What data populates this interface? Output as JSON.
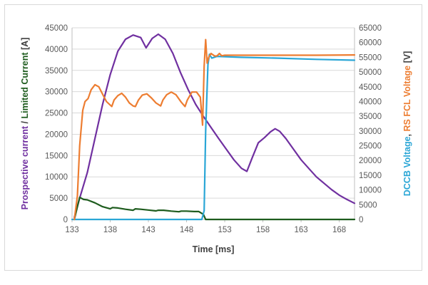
{
  "chart_data": {
    "type": "line",
    "title": "",
    "xlabel": "Time [ms]",
    "ylabel_left_parts": [
      {
        "text": "Prospective current",
        "color": "#7030a0"
      },
      {
        "text": " / ",
        "color": "#404040"
      },
      {
        "text": "Limited Current",
        "color": "#1e5c1e"
      },
      {
        "text": " [A]",
        "color": "#404040"
      }
    ],
    "ylabel_right_parts": [
      {
        "text": "DCCB Voltage",
        "color": "#2aa6d6"
      },
      {
        "text": ", ",
        "color": "#404040"
      },
      {
        "text": "RS FCL Voltage",
        "color": "#ed7d31"
      },
      {
        "text": " [V]",
        "color": "#404040"
      }
    ],
    "xlim": [
      133,
      170
    ],
    "ylim_left": [
      0,
      45000
    ],
    "ylim_right": [
      0,
      65000
    ],
    "x_ticks": [
      133,
      138,
      143,
      148,
      153,
      158,
      163,
      168
    ],
    "y_ticks_left": [
      0,
      5000,
      10000,
      15000,
      20000,
      25000,
      30000,
      35000,
      40000,
      45000
    ],
    "y_ticks_right": [
      0,
      5000,
      10000,
      15000,
      20000,
      25000,
      30000,
      35000,
      40000,
      45000,
      50000,
      55000,
      60000,
      65000
    ],
    "grid": "horizontal",
    "series": [
      {
        "color": "#7030a0",
        "axis": "left",
        "points": [
          [
            133.3,
            500
          ],
          [
            134,
            5000
          ],
          [
            135,
            11000
          ],
          [
            136,
            19000
          ],
          [
            137,
            27000
          ],
          [
            138,
            34000
          ],
          [
            139,
            39500
          ],
          [
            140,
            42300
          ],
          [
            141,
            43300
          ],
          [
            142,
            42700
          ],
          [
            142.7,
            40300
          ],
          [
            143.5,
            42500
          ],
          [
            144.3,
            43500
          ],
          [
            145.2,
            42300
          ],
          [
            146.2,
            39000
          ],
          [
            147.2,
            34500
          ],
          [
            148.2,
            30500
          ],
          [
            149.2,
            27000
          ],
          [
            150.2,
            24200
          ],
          [
            151.2,
            21600
          ],
          [
            152.2,
            19000
          ],
          [
            153.2,
            16500
          ],
          [
            154.2,
            14000
          ],
          [
            155.2,
            12000
          ],
          [
            155.9,
            11300
          ],
          [
            156.6,
            14500
          ],
          [
            157.4,
            18000
          ],
          [
            158.2,
            19200
          ],
          [
            159,
            20600
          ],
          [
            159.6,
            21300
          ],
          [
            160.2,
            20700
          ],
          [
            161,
            19000
          ],
          [
            162,
            16500
          ],
          [
            163,
            14000
          ],
          [
            164,
            12000
          ],
          [
            165,
            10000
          ],
          [
            166,
            8500
          ],
          [
            167,
            7000
          ],
          [
            168,
            5700
          ],
          [
            169,
            4700
          ],
          [
            170,
            3800
          ]
        ]
      },
      {
        "color": "#1e5c1e",
        "axis": "left",
        "points": [
          [
            133.3,
            0
          ],
          [
            134,
            5200
          ],
          [
            134.5,
            4700
          ],
          [
            135,
            4600
          ],
          [
            136,
            3900
          ],
          [
            137,
            3000
          ],
          [
            138,
            2500
          ],
          [
            138.3,
            2800
          ],
          [
            139,
            2700
          ],
          [
            140,
            2400
          ],
          [
            141,
            2150
          ],
          [
            141.3,
            2500
          ],
          [
            142,
            2400
          ],
          [
            143,
            2200
          ],
          [
            144,
            2000
          ],
          [
            144.3,
            2150
          ],
          [
            145,
            2150
          ],
          [
            146,
            1950
          ],
          [
            147,
            1800
          ],
          [
            147.3,
            1950
          ],
          [
            148,
            1950
          ],
          [
            149,
            1850
          ],
          [
            149.6,
            1850
          ],
          [
            150.2,
            1200
          ],
          [
            150.5,
            0
          ],
          [
            170,
            0
          ]
        ]
      },
      {
        "color": "#2aa6d6",
        "axis": "right",
        "points": [
          [
            133,
            0
          ],
          [
            150,
            0
          ],
          [
            150.3,
            3000
          ],
          [
            150.5,
            30000
          ],
          [
            150.8,
            52500
          ],
          [
            151,
            56000
          ],
          [
            151.3,
            54700
          ],
          [
            152,
            55300
          ],
          [
            155,
            55000
          ],
          [
            160,
            54700
          ],
          [
            165,
            54300
          ],
          [
            170,
            54000
          ]
        ]
      },
      {
        "color": "#ed7d31",
        "axis": "right",
        "points": [
          [
            133.3,
            0
          ],
          [
            133.7,
            8000
          ],
          [
            134,
            25000
          ],
          [
            134.4,
            37000
          ],
          [
            134.7,
            40000
          ],
          [
            135.1,
            41000
          ],
          [
            135.5,
            44000
          ],
          [
            136,
            45700
          ],
          [
            136.5,
            45000
          ],
          [
            137,
            42500
          ],
          [
            137.5,
            40000
          ],
          [
            138.2,
            38300
          ],
          [
            138.5,
            40500
          ],
          [
            139,
            42000
          ],
          [
            139.5,
            42800
          ],
          [
            140,
            41500
          ],
          [
            140.5,
            39500
          ],
          [
            141,
            38500
          ],
          [
            141.3,
            38300
          ],
          [
            141.7,
            40500
          ],
          [
            142.2,
            42200
          ],
          [
            142.8,
            42600
          ],
          [
            143.4,
            41200
          ],
          [
            144,
            39500
          ],
          [
            144.6,
            38500
          ],
          [
            144.9,
            40500
          ],
          [
            145.4,
            42300
          ],
          [
            146,
            43200
          ],
          [
            146.6,
            42300
          ],
          [
            147.3,
            39800
          ],
          [
            147.8,
            38300
          ],
          [
            148.1,
            40500
          ],
          [
            148.7,
            43200
          ],
          [
            149.3,
            43200
          ],
          [
            149.8,
            41500
          ],
          [
            150.1,
            32000
          ],
          [
            150.3,
            52000
          ],
          [
            150.5,
            61000
          ],
          [
            150.7,
            53000
          ],
          [
            150.9,
            55000
          ],
          [
            151.2,
            56300
          ],
          [
            151.7,
            55400
          ],
          [
            152,
            55500
          ],
          [
            152.3,
            56300
          ],
          [
            152.6,
            55500
          ],
          [
            153,
            55700
          ],
          [
            160,
            55700
          ],
          [
            165,
            55700
          ],
          [
            170,
            55800
          ]
        ]
      }
    ]
  }
}
